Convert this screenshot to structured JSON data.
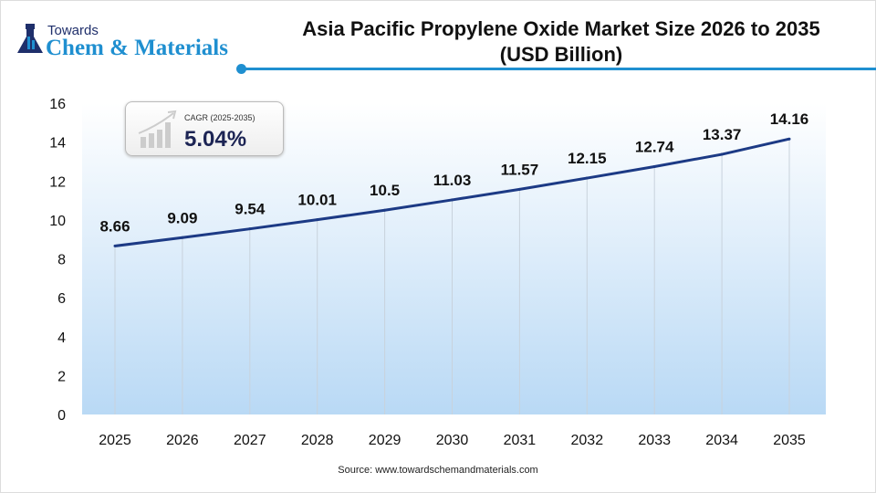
{
  "logo": {
    "line1": "Towards",
    "line2": "Chem & Materials"
  },
  "title": "Asia Pacific Propylene Oxide Market Size 2026 to 2035",
  "subtitle": "(USD Billion)",
  "cagr": {
    "label": "CAGR (2025-2035)",
    "value": "5.04%"
  },
  "source": "Source: www.towardschemandmaterials.com",
  "colors": {
    "line": "#1c3a85",
    "accent": "#1f8fd0",
    "area_bottom": "#b9d9f5"
  },
  "chart_data": {
    "type": "line",
    "categories": [
      "2025",
      "2026",
      "2027",
      "2028",
      "2029",
      "2030",
      "2031",
      "2032",
      "2033",
      "2034",
      "2035"
    ],
    "values": [
      8.66,
      9.09,
      9.54,
      10.01,
      10.5,
      11.03,
      11.57,
      12.15,
      12.74,
      13.37,
      14.16
    ],
    "labels": [
      "8.66",
      "9.09",
      "9.54",
      "10.01",
      "10.5",
      "11.03",
      "11.57",
      "12.15",
      "12.74",
      "13.37",
      "14.16"
    ],
    "yticks": [
      0,
      2,
      4,
      6,
      8,
      10,
      12,
      14,
      16
    ],
    "ylim": [
      0,
      16
    ],
    "grid": "vertical"
  }
}
